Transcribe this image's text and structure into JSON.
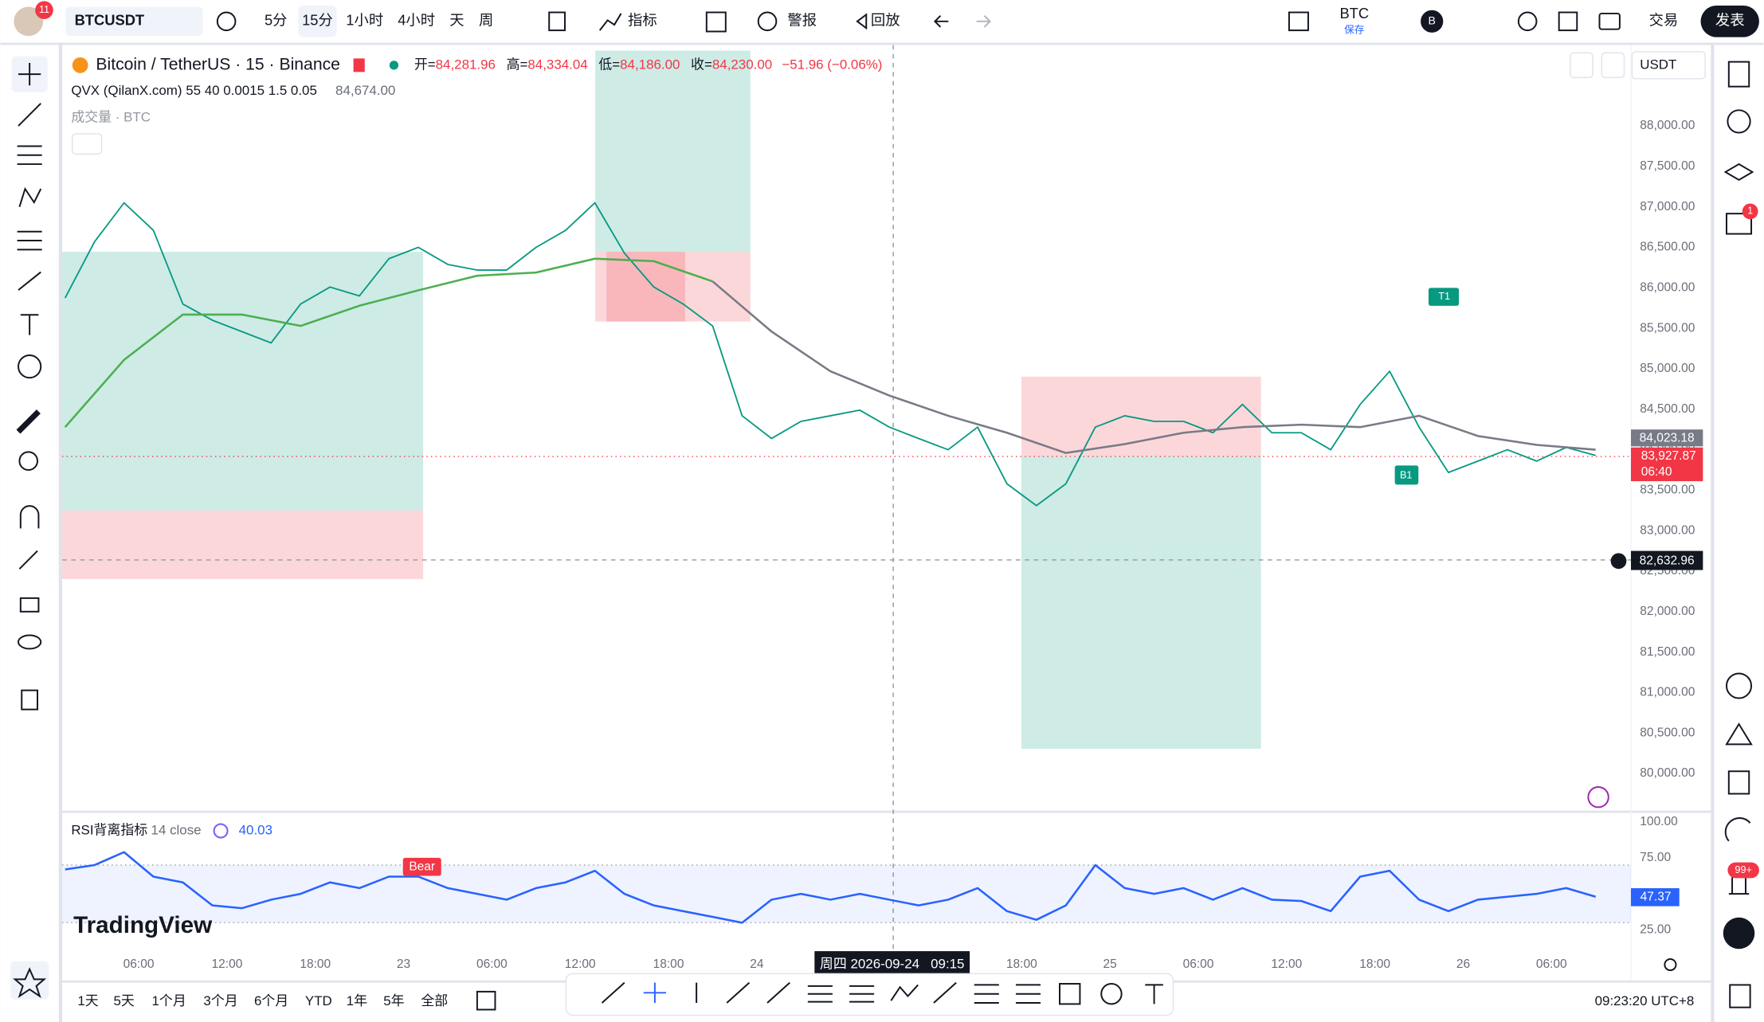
{
  "toolbar": {
    "badge": "11",
    "symbol": "BTCUSDT",
    "intervals": [
      "5分",
      "15分",
      "1小时",
      "4小时",
      "天",
      "周"
    ],
    "indicators": "指标",
    "alert": "警报",
    "replay": "回放",
    "layout_name": "BTC",
    "save": "保存",
    "broker": "B",
    "trade": "交易",
    "publish": "发表"
  },
  "legend": {
    "symbol": "Bitcoin / TetherUS · 15 · Binance",
    "open_label": "开=",
    "open": "84,281.96",
    "high_label": "高=",
    "high": "84,334.04",
    "low_label": "低=",
    "low": "84,186.00",
    "close_label": "收=",
    "close": "84,230.00",
    "change": "−51.96 (−0.06%)",
    "indicator": "QVX (QilanX.com) 55 40 0.0015 1.5 0.05",
    "indicator_value": "84,674.00",
    "volume": "成交量 · BTC"
  },
  "price_scale": {
    "currency": "USDT",
    "ma_price": "84,023.18",
    "last_price": "83,927.87",
    "countdown": "06:40",
    "crosshair_price": "82,632.96"
  },
  "rsi_legend": {
    "name": "RSI背离指标",
    "params": "14 close",
    "value": "40.03",
    "last": "47.37"
  },
  "markers": {
    "t1": "T1",
    "b1": "B1",
    "bear": "Bear"
  },
  "crosshair_time": "周四 2026-09-24   09:15",
  "watermark": "TradingView",
  "bottom_bar": {
    "ranges": [
      "1天",
      "5天",
      "1个月",
      "3个月",
      "6个月",
      "YTD",
      "1年",
      "5年",
      "全部"
    ],
    "clock": "09:23:20 UTC+8"
  },
  "sidebar": {
    "alerts_badge": "1",
    "notifications_badge": "99+"
  },
  "chart_data": [
    {
      "type": "line",
      "xlim": [
        0.8,
        107.4
      ],
      "ylim": [
        79556,
        88931
      ],
      "grid": false,
      "xticks": [
        {
          "value": 6,
          "label": "06:00"
        },
        {
          "value": 12,
          "label": "12:00"
        },
        {
          "value": 18,
          "label": "18:00"
        },
        {
          "value": 24,
          "label": "23"
        },
        {
          "value": 30,
          "label": "06:00"
        },
        {
          "value": 36,
          "label": "12:00"
        },
        {
          "value": 42,
          "label": "18:00"
        },
        {
          "value": 48,
          "label": "24"
        },
        {
          "value": 66,
          "label": "18:00"
        },
        {
          "value": 72,
          "label": "25"
        },
        {
          "value": 78,
          "label": "06:00"
        },
        {
          "value": 84,
          "label": "12:00"
        },
        {
          "value": 90,
          "label": "18:00"
        },
        {
          "value": 96,
          "label": "26"
        },
        {
          "value": 102,
          "label": "06:00"
        }
      ],
      "yticks": [
        {
          "value": 80000,
          "label": "80,000.00"
        },
        {
          "value": 80500,
          "label": "80,500.00"
        },
        {
          "value": 81000,
          "label": "81,000.00"
        },
        {
          "value": 81500,
          "label": "81,500.00"
        },
        {
          "value": 82000,
          "label": "82,000.00"
        },
        {
          "value": 82500,
          "label": "82,500.00"
        },
        {
          "value": 83000,
          "label": "83,000.00"
        },
        {
          "value": 83500,
          "label": "83,500.00"
        },
        {
          "value": 84000,
          "label": "84,000.00"
        },
        {
          "value": 84500,
          "label": "84,500.00"
        },
        {
          "value": 85000,
          "label": "85,000.00"
        },
        {
          "value": 85500,
          "label": "85,500.00"
        },
        {
          "value": 86000,
          "label": "86,000.00"
        },
        {
          "value": 86500,
          "label": "86,500.00"
        },
        {
          "value": 87000,
          "label": "87,000.00"
        },
        {
          "value": 87500,
          "label": "87,500.00"
        },
        {
          "value": 88000,
          "label": "88,000.00"
        }
      ],
      "series": [
        {
          "color": "#089981",
          "x": [
            1,
            3,
            5,
            7,
            9,
            11,
            13,
            15,
            17,
            19,
            21,
            23,
            25,
            27,
            29,
            31,
            33,
            35,
            37,
            39,
            41,
            43,
            45,
            47,
            49,
            51,
            53,
            55,
            57,
            59,
            61,
            63,
            65,
            67,
            69,
            71,
            73,
            75,
            77,
            79,
            81,
            83,
            85,
            87,
            89,
            91,
            93,
            95,
            97,
            99,
            101,
            103,
            105
          ],
          "values": [
            85875,
            86570,
            87050,
            86710,
            85800,
            85600,
            85460,
            85320,
            85800,
            86010,
            85900,
            86360,
            86500,
            86290,
            86220,
            86220,
            86500,
            86710,
            87050,
            86430,
            86010,
            85800,
            85530,
            84420,
            84140,
            84350,
            84420,
            84490,
            84280,
            84140,
            84000,
            84280,
            83580,
            83310,
            83580,
            84280,
            84420,
            84350,
            84350,
            84210,
            84560,
            84210,
            84210,
            84000,
            84560,
            84970,
            84280,
            83720,
            83860,
            84000,
            83860,
            84030,
            83930
          ]
        },
        {
          "color": "#4caf50",
          "x": [
            1,
            5,
            9,
            13,
            17,
            21,
            25,
            29,
            33,
            37,
            41,
            45
          ],
          "values": [
            84280,
            85110,
            85670,
            85670,
            85530,
            85780,
            85970,
            86150,
            86190,
            86360,
            86330,
            86080
          ]
        },
        {
          "color": "#787b86",
          "x": [
            45,
            49,
            53,
            57,
            61,
            65,
            69,
            73,
            77,
            81,
            85,
            89,
            93,
            97,
            101,
            105
          ],
          "values": [
            86080,
            85460,
            84970,
            84670,
            84420,
            84210,
            83960,
            84070,
            84210,
            84280,
            84310,
            84280,
            84420,
            84170,
            84060,
            84000
          ]
        }
      ]
    },
    {
      "type": "line",
      "xlim": [
        0.8,
        107.4
      ],
      "ylim": [
        11,
        107
      ],
      "band": [
        30,
        70
      ],
      "yticks": [
        {
          "value": 25,
          "label": "25.00"
        },
        {
          "value": 75,
          "label": "75.00"
        },
        {
          "value": 100,
          "label": "100.00"
        }
      ],
      "series": [
        {
          "color": "#2962ff",
          "x": [
            1,
            3,
            5,
            7,
            9,
            11,
            13,
            15,
            17,
            19,
            21,
            23,
            25,
            27,
            29,
            31,
            33,
            35,
            37,
            39,
            41,
            43,
            45,
            47,
            49,
            51,
            53,
            55,
            57,
            59,
            61,
            63,
            65,
            67,
            69,
            71,
            73,
            75,
            77,
            79,
            81,
            83,
            85,
            87,
            89,
            91,
            93,
            95,
            97,
            99,
            101,
            103,
            105
          ],
          "values": [
            67,
            70,
            79,
            62,
            58,
            42,
            40,
            46,
            50,
            58,
            54,
            62,
            62,
            54,
            50,
            46,
            54,
            58,
            66,
            50,
            42,
            38,
            34,
            30,
            46,
            50,
            46,
            50,
            46,
            42,
            46,
            54,
            38,
            32,
            42,
            70,
            54,
            50,
            54,
            46,
            54,
            46,
            45,
            38,
            62,
            66,
            46,
            38,
            46,
            48,
            50,
            54,
            48
          ]
        }
      ]
    }
  ]
}
